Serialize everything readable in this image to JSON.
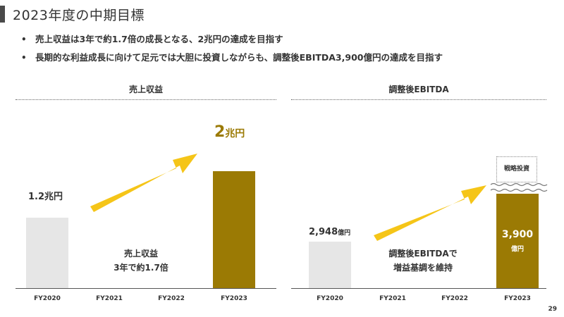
{
  "title": "2023年度の中期目標",
  "bullets": [
    "売上収益は3年で約1.7倍の成長となる、2兆円の達成を目指す",
    "長期的な利益成長に向けて足元では大胆に投資しながらも、調整後EBITDA3,900億円の達成を目指す"
  ],
  "bullet_marker": "•",
  "colors": {
    "gold": "#9b7a04",
    "gray_bar": "#e6e6e6",
    "arrow": "#f5c518"
  },
  "chart_data": [
    {
      "type": "bar",
      "title": "売上収益",
      "categories": [
        "FY2020",
        "FY2021",
        "FY2022",
        "FY2023"
      ],
      "values": [
        1.2,
        null,
        null,
        2.0
      ],
      "value_labels": [
        "1.2兆円",
        "",
        "",
        "2兆円"
      ],
      "center_text": [
        "売上収益",
        "3年で約1.7倍"
      ],
      "ylim": [
        0,
        2.3
      ]
    },
    {
      "type": "bar",
      "title": "調整後EBITDA",
      "categories": [
        "FY2020",
        "FY2021",
        "FY2022",
        "FY2023"
      ],
      "values": [
        2948,
        null,
        null,
        3900
      ],
      "value_labels": [
        {
          "num": "2,948",
          "unit": "億円"
        },
        "",
        "",
        {
          "num": "3,900",
          "unit": "億円"
        }
      ],
      "center_text": [
        "調整後EBITDAで",
        "増益基調を維持"
      ],
      "annotation": "戦略投資",
      "axis_break": true
    }
  ],
  "page_number": "29"
}
